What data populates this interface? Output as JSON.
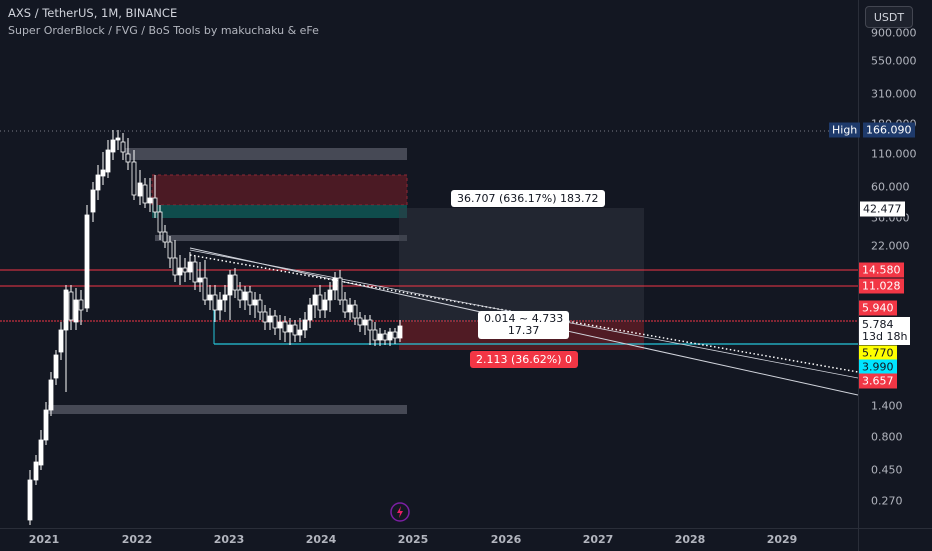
{
  "legend": {
    "symbol": "AXS / TetherUS, 1M, BINANCE",
    "indicator": "Super OrderBlock / FVG / BoS Tools by makuchaku & eFe"
  },
  "currency": "USDT",
  "price_axis": {
    "ticks": [
      "900.000",
      "550.000",
      "310.000",
      "180.000",
      "110.000",
      "60.000",
      "36.000",
      "22.000",
      "1.400",
      "0.800",
      "0.450",
      "0.270"
    ],
    "tags": {
      "high_label": "High",
      "high_value": "166.090",
      "level_42": "42.477",
      "level_14": "14.580",
      "level_11": "11.028",
      "level_5_94": "5.940",
      "last_price": "5.784",
      "countdown": "13d 18h",
      "level_5_77": "5.770",
      "level_3_99": "3.990",
      "level_3_65": "3.657"
    }
  },
  "time_axis": [
    "2021",
    "2022",
    "2023",
    "2024",
    "2025",
    "2026",
    "2027",
    "2028",
    "2029"
  ],
  "measure": {
    "upper_label": "36.707 (636.17%) 183.72",
    "middle_label_1": "0.014 ~ 4.733",
    "middle_label_2": "17.37",
    "lower_label": "2.113 (36.62%) 0"
  },
  "colors": {
    "background": "#131722",
    "bull_candle": "#ffffff",
    "bear_candle": "#131722",
    "red_line": "#f23645",
    "cyan_line": "#26c6da",
    "high_tag": "#1e3a6b",
    "yellow_tag": "#ffff00",
    "cyan_tag": "#00e5ff"
  }
}
